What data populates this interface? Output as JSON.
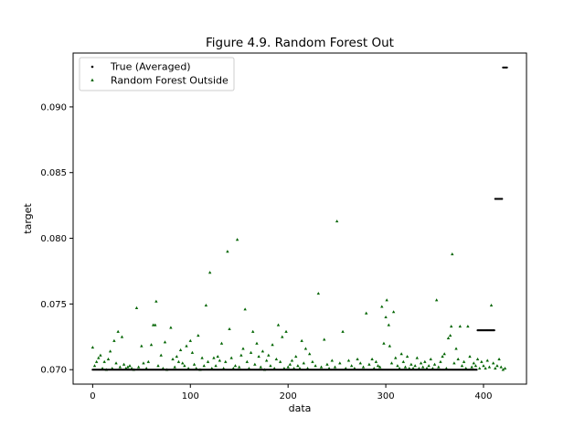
{
  "chart_data": {
    "type": "scatter",
    "title": "Figure 4.9. Random Forest Out",
    "xlabel": "data",
    "ylabel": "target",
    "xlim": [
      -20,
      444
    ],
    "ylim": [
      0.0689,
      0.0941
    ],
    "xticks": [
      0,
      100,
      200,
      300,
      400
    ],
    "xtick_labels": [
      "0",
      "100",
      "200",
      "300",
      "400"
    ],
    "yticks": [
      0.07,
      0.075,
      0.08,
      0.085,
      0.09
    ],
    "ytick_labels": [
      "0.070",
      "0.075",
      "0.080",
      "0.085",
      "0.090"
    ],
    "grid": false,
    "legend_position": "upper-left",
    "series": [
      {
        "name": "True (Averaged)",
        "marker": "dot",
        "color": "#000000",
        "segments": [
          {
            "x_from": 0,
            "x_to": 393,
            "y": 0.07
          },
          {
            "x_from": 394,
            "x_to": 411,
            "y": 0.073
          },
          {
            "x_from": 412,
            "x_to": 419,
            "y": 0.083
          },
          {
            "x_from": 420,
            "x_to": 424,
            "y": 0.093
          }
        ]
      },
      {
        "name": "Random Forest Outside",
        "marker": "triangle",
        "color": "#006400",
        "points": [
          [
            0,
            0.0717
          ],
          [
            2,
            0.0703
          ],
          [
            4,
            0.0706
          ],
          [
            6,
            0.0709
          ],
          [
            8,
            0.0711
          ],
          [
            10,
            0.0701
          ],
          [
            12,
            0.0706
          ],
          [
            14,
            0.07
          ],
          [
            16,
            0.0708
          ],
          [
            18,
            0.0714
          ],
          [
            20,
            0.0701
          ],
          [
            22,
            0.0722
          ],
          [
            24,
            0.0705
          ],
          [
            26,
            0.0729
          ],
          [
            28,
            0.0702
          ],
          [
            30,
            0.0725
          ],
          [
            32,
            0.0704
          ],
          [
            34,
            0.0701
          ],
          [
            36,
            0.0702
          ],
          [
            38,
            0.0703
          ],
          [
            40,
            0.0701
          ],
          [
            42,
            0.07
          ],
          [
            45,
            0.0747
          ],
          [
            47,
            0.0702
          ],
          [
            50,
            0.0718
          ],
          [
            52,
            0.0705
          ],
          [
            55,
            0.0701
          ],
          [
            57,
            0.0706
          ],
          [
            60,
            0.0719
          ],
          [
            62,
            0.0734
          ],
          [
            64,
            0.0734
          ],
          [
            65,
            0.0752
          ],
          [
            67,
            0.0703
          ],
          [
            70,
            0.0711
          ],
          [
            72,
            0.0701
          ],
          [
            74,
            0.0721
          ],
          [
            76,
            0.07
          ],
          [
            80,
            0.0732
          ],
          [
            82,
            0.0708
          ],
          [
            84,
            0.0702
          ],
          [
            86,
            0.071
          ],
          [
            88,
            0.0706
          ],
          [
            90,
            0.0715
          ],
          [
            92,
            0.0705
          ],
          [
            94,
            0.0703
          ],
          [
            96,
            0.0718
          ],
          [
            98,
            0.0701
          ],
          [
            100,
            0.0722
          ],
          [
            102,
            0.0713
          ],
          [
            104,
            0.0704
          ],
          [
            106,
            0.0701
          ],
          [
            108,
            0.0726
          ],
          [
            110,
            0.07
          ],
          [
            112,
            0.0709
          ],
          [
            114,
            0.0703
          ],
          [
            116,
            0.0749
          ],
          [
            118,
            0.0706
          ],
          [
            120,
            0.0774
          ],
          [
            122,
            0.0701
          ],
          [
            124,
            0.0709
          ],
          [
            126,
            0.0703
          ],
          [
            128,
            0.071
          ],
          [
            130,
            0.0707
          ],
          [
            132,
            0.072
          ],
          [
            134,
            0.0701
          ],
          [
            136,
            0.0706
          ],
          [
            138,
            0.079
          ],
          [
            140,
            0.0731
          ],
          [
            142,
            0.0709
          ],
          [
            144,
            0.0701
          ],
          [
            146,
            0.0703
          ],
          [
            148,
            0.0799
          ],
          [
            150,
            0.0702
          ],
          [
            152,
            0.0711
          ],
          [
            154,
            0.0716
          ],
          [
            156,
            0.0746
          ],
          [
            158,
            0.0706
          ],
          [
            160,
            0.0701
          ],
          [
            162,
            0.0713
          ],
          [
            164,
            0.0729
          ],
          [
            166,
            0.0704
          ],
          [
            168,
            0.072
          ],
          [
            170,
            0.071
          ],
          [
            172,
            0.0702
          ],
          [
            174,
            0.0714
          ],
          [
            176,
            0.07
          ],
          [
            178,
            0.0707
          ],
          [
            180,
            0.0711
          ],
          [
            182,
            0.0703
          ],
          [
            184,
            0.0719
          ],
          [
            186,
            0.0701
          ],
          [
            188,
            0.0708
          ],
          [
            190,
            0.0734
          ],
          [
            192,
            0.0706
          ],
          [
            194,
            0.0725
          ],
          [
            196,
            0.0701
          ],
          [
            198,
            0.0729
          ],
          [
            200,
            0.0702
          ],
          [
            202,
            0.0704
          ],
          [
            204,
            0.0707
          ],
          [
            206,
            0.0701
          ],
          [
            208,
            0.071
          ],
          [
            210,
            0.0703
          ],
          [
            212,
            0.0701
          ],
          [
            214,
            0.0722
          ],
          [
            216,
            0.0705
          ],
          [
            218,
            0.0716
          ],
          [
            220,
            0.0701
          ],
          [
            222,
            0.0712
          ],
          [
            225,
            0.0706
          ],
          [
            228,
            0.0703
          ],
          [
            231,
            0.0758
          ],
          [
            234,
            0.0702
          ],
          [
            237,
            0.0723
          ],
          [
            240,
            0.0704
          ],
          [
            242,
            0.0701
          ],
          [
            245,
            0.0707
          ],
          [
            248,
            0.0702
          ],
          [
            250,
            0.0813
          ],
          [
            253,
            0.0705
          ],
          [
            256,
            0.0729
          ],
          [
            259,
            0.0701
          ],
          [
            262,
            0.0707
          ],
          [
            265,
            0.0703
          ],
          [
            268,
            0.0701
          ],
          [
            271,
            0.0708
          ],
          [
            274,
            0.0705
          ],
          [
            277,
            0.0702
          ],
          [
            280,
            0.0743
          ],
          [
            283,
            0.0704
          ],
          [
            286,
            0.0708
          ],
          [
            288,
            0.0701
          ],
          [
            290,
            0.0706
          ],
          [
            292,
            0.0703
          ],
          [
            294,
            0.0702
          ],
          [
            296,
            0.0748
          ],
          [
            298,
            0.072
          ],
          [
            300,
            0.074
          ],
          [
            301,
            0.0753
          ],
          [
            303,
            0.0734
          ],
          [
            304,
            0.0718
          ],
          [
            306,
            0.0705
          ],
          [
            308,
            0.0744
          ],
          [
            310,
            0.0709
          ],
          [
            312,
            0.0703
          ],
          [
            314,
            0.0701
          ],
          [
            316,
            0.0712
          ],
          [
            318,
            0.0706
          ],
          [
            320,
            0.0702
          ],
          [
            322,
            0.071
          ],
          [
            324,
            0.0701
          ],
          [
            326,
            0.0704
          ],
          [
            328,
            0.0701
          ],
          [
            330,
            0.0703
          ],
          [
            332,
            0.0709
          ],
          [
            334,
            0.0701
          ],
          [
            336,
            0.0705
          ],
          [
            338,
            0.0702
          ],
          [
            340,
            0.0706
          ],
          [
            342,
            0.0701
          ],
          [
            344,
            0.0703
          ],
          [
            346,
            0.0708
          ],
          [
            348,
            0.0701
          ],
          [
            350,
            0.0704
          ],
          [
            352,
            0.0753
          ],
          [
            354,
            0.0702
          ],
          [
            356,
            0.0706
          ],
          [
            358,
            0.071
          ],
          [
            360,
            0.0712
          ],
          [
            362,
            0.0701
          ],
          [
            364,
            0.0724
          ],
          [
            366,
            0.0726
          ],
          [
            367,
            0.0733
          ],
          [
            368,
            0.0788
          ],
          [
            370,
            0.0705
          ],
          [
            372,
            0.0716
          ],
          [
            374,
            0.0708
          ],
          [
            376,
            0.0733
          ],
          [
            378,
            0.0703
          ],
          [
            380,
            0.0706
          ],
          [
            382,
            0.0701
          ],
          [
            384,
            0.0733
          ],
          [
            386,
            0.071
          ],
          [
            388,
            0.0702
          ],
          [
            390,
            0.0705
          ],
          [
            392,
            0.0703
          ],
          [
            394,
            0.0708
          ],
          [
            396,
            0.0701
          ],
          [
            398,
            0.0706
          ],
          [
            400,
            0.0703
          ],
          [
            402,
            0.0701
          ],
          [
            404,
            0.0707
          ],
          [
            406,
            0.0702
          ],
          [
            408,
            0.0749
          ],
          [
            410,
            0.0705
          ],
          [
            412,
            0.0701
          ],
          [
            414,
            0.0703
          ],
          [
            416,
            0.0708
          ],
          [
            418,
            0.0702
          ],
          [
            420,
            0.07
          ],
          [
            422,
            0.0701
          ]
        ]
      }
    ]
  }
}
